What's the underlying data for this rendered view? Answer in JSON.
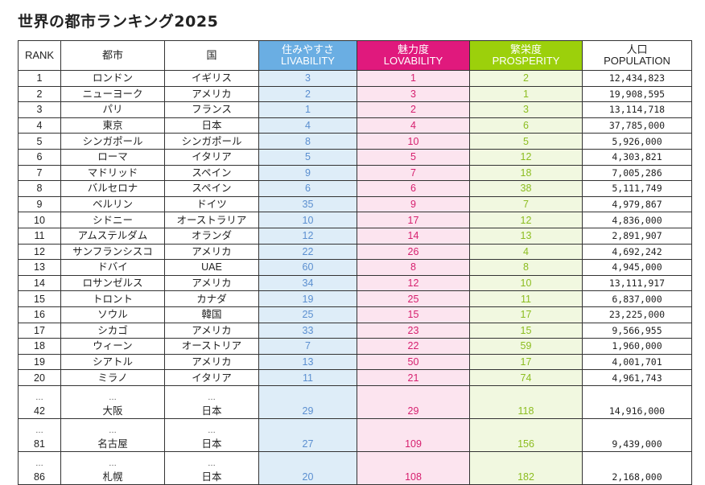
{
  "title": "世界の都市ランキング2025",
  "headers": {
    "rank": "RANK",
    "city": "都市",
    "country": "国",
    "livability_jp": "住みやすさ",
    "livability_en": "LIVABILITY",
    "lovability_jp": "魅力度",
    "lovability_en": "LOVABILITY",
    "prosperity_jp": "繁栄度",
    "prosperity_en": "PROSPERITY",
    "population_jp": "人口",
    "population_en": "POPULATION"
  },
  "colors": {
    "livability": "#6aaee3",
    "lovability": "#e0197d",
    "prosperity": "#9cd00b"
  },
  "ellipsis": "…",
  "rows": [
    {
      "rank": "1",
      "city": "ロンドン",
      "country": "イギリス",
      "livability": "3",
      "lovability": "1",
      "prosperity": "2",
      "population": "12,434,823"
    },
    {
      "rank": "2",
      "city": "ニューヨーク",
      "country": "アメリカ",
      "livability": "2",
      "lovability": "3",
      "prosperity": "1",
      "population": "19,908,595"
    },
    {
      "rank": "3",
      "city": "パリ",
      "country": "フランス",
      "livability": "1",
      "lovability": "2",
      "prosperity": "3",
      "population": "13,114,718"
    },
    {
      "rank": "4",
      "city": "東京",
      "country": "日本",
      "livability": "4",
      "lovability": "4",
      "prosperity": "6",
      "population": "37,785,000"
    },
    {
      "rank": "5",
      "city": "シンガポール",
      "country": "シンガポール",
      "livability": "8",
      "lovability": "10",
      "prosperity": "5",
      "population": "5,926,000"
    },
    {
      "rank": "6",
      "city": "ローマ",
      "country": "イタリア",
      "livability": "5",
      "lovability": "5",
      "prosperity": "12",
      "population": "4,303,821"
    },
    {
      "rank": "7",
      "city": "マドリッド",
      "country": "スペイン",
      "livability": "9",
      "lovability": "7",
      "prosperity": "18",
      "population": "7,005,286"
    },
    {
      "rank": "8",
      "city": "バルセロナ",
      "country": "スペイン",
      "livability": "6",
      "lovability": "6",
      "prosperity": "38",
      "population": "5,111,749"
    },
    {
      "rank": "9",
      "city": "ベルリン",
      "country": "ドイツ",
      "livability": "35",
      "lovability": "9",
      "prosperity": "7",
      "population": "4,979,867"
    },
    {
      "rank": "10",
      "city": "シドニー",
      "country": "オーストラリア",
      "livability": "10",
      "lovability": "17",
      "prosperity": "12",
      "population": "4,836,000"
    },
    {
      "rank": "11",
      "city": "アムステルダム",
      "country": "オランダ",
      "livability": "12",
      "lovability": "14",
      "prosperity": "13",
      "population": "2,891,907"
    },
    {
      "rank": "12",
      "city": "サンフランシスコ",
      "country": "アメリカ",
      "livability": "22",
      "lovability": "26",
      "prosperity": "4",
      "population": "4,692,242"
    },
    {
      "rank": "13",
      "city": "ドバイ",
      "country": "UAE",
      "livability": "60",
      "lovability": "8",
      "prosperity": "8",
      "population": "4,945,000"
    },
    {
      "rank": "14",
      "city": "ロサンゼルス",
      "country": "アメリカ",
      "livability": "34",
      "lovability": "12",
      "prosperity": "10",
      "population": "13,111,917"
    },
    {
      "rank": "15",
      "city": "トロント",
      "country": "カナダ",
      "livability": "19",
      "lovability": "25",
      "prosperity": "11",
      "population": "6,837,000"
    },
    {
      "rank": "16",
      "city": "ソウル",
      "country": "韓国",
      "livability": "25",
      "lovability": "15",
      "prosperity": "17",
      "population": "23,225,000"
    },
    {
      "rank": "17",
      "city": "シカゴ",
      "country": "アメリカ",
      "livability": "33",
      "lovability": "23",
      "prosperity": "15",
      "population": "9,566,955"
    },
    {
      "rank": "18",
      "city": "ウィーン",
      "country": "オーストリア",
      "livability": "7",
      "lovability": "22",
      "prosperity": "59",
      "population": "1,960,000"
    },
    {
      "rank": "19",
      "city": "シアトル",
      "country": "アメリカ",
      "livability": "13",
      "lovability": "50",
      "prosperity": "17",
      "population": "4,001,701"
    },
    {
      "rank": "20",
      "city": "ミラノ",
      "country": "イタリア",
      "livability": "11",
      "lovability": "21",
      "prosperity": "74",
      "population": "4,961,743"
    }
  ],
  "gap_rows": [
    {
      "rank": "42",
      "city": "大阪",
      "country": "日本",
      "livability": "29",
      "lovability": "29",
      "prosperity": "118",
      "population": "14,916,000"
    },
    {
      "rank": "81",
      "city": "名古屋",
      "country": "日本",
      "livability": "27",
      "lovability": "109",
      "prosperity": "156",
      "population": "9,439,000"
    },
    {
      "rank": "86",
      "city": "札幌",
      "country": "日本",
      "livability": "20",
      "lovability": "108",
      "prosperity": "182",
      "population": "2,168,000"
    }
  ]
}
